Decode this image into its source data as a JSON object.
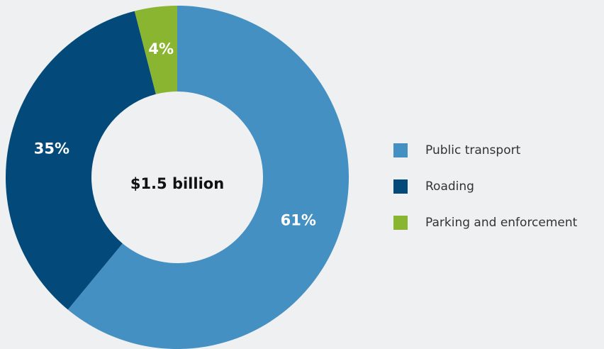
{
  "chart_data": {
    "type": "donut",
    "annotation": "$1.5 billion",
    "categories": [
      "Public transport",
      "Roading",
      "Parking and enforcement"
    ],
    "values": [
      61,
      35,
      4
    ],
    "value_labels": [
      "61%",
      "35%",
      "4%"
    ],
    "colors": [
      "#4590c2",
      "#034a7a",
      "#8ab531"
    ]
  }
}
